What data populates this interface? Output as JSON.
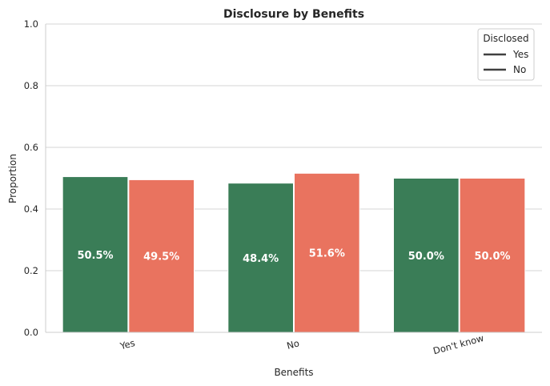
{
  "chart_data": {
    "type": "bar",
    "title": "Disclosure by Benefits",
    "xlabel": "Benefits",
    "ylabel": "Proportion",
    "ylim": [
      0,
      1.0
    ],
    "yticks": [
      "0.0",
      "0.2",
      "0.4",
      "0.6",
      "0.8",
      "1.0"
    ],
    "categories": [
      "Yes",
      "No",
      "Don't know"
    ],
    "series": [
      {
        "name": "Yes",
        "color": "#3a7d57",
        "values": [
          0.505,
          0.484,
          0.5
        ],
        "labels": [
          "50.5%",
          "48.4%",
          "50.0%"
        ]
      },
      {
        "name": "No",
        "color": "#e9735f",
        "values": [
          0.495,
          0.516,
          0.5
        ],
        "labels": [
          "49.5%",
          "51.6%",
          "50.0%"
        ]
      }
    ],
    "legend": {
      "title": "Disclosed",
      "position": "top-right"
    },
    "grid": "horizontal"
  }
}
